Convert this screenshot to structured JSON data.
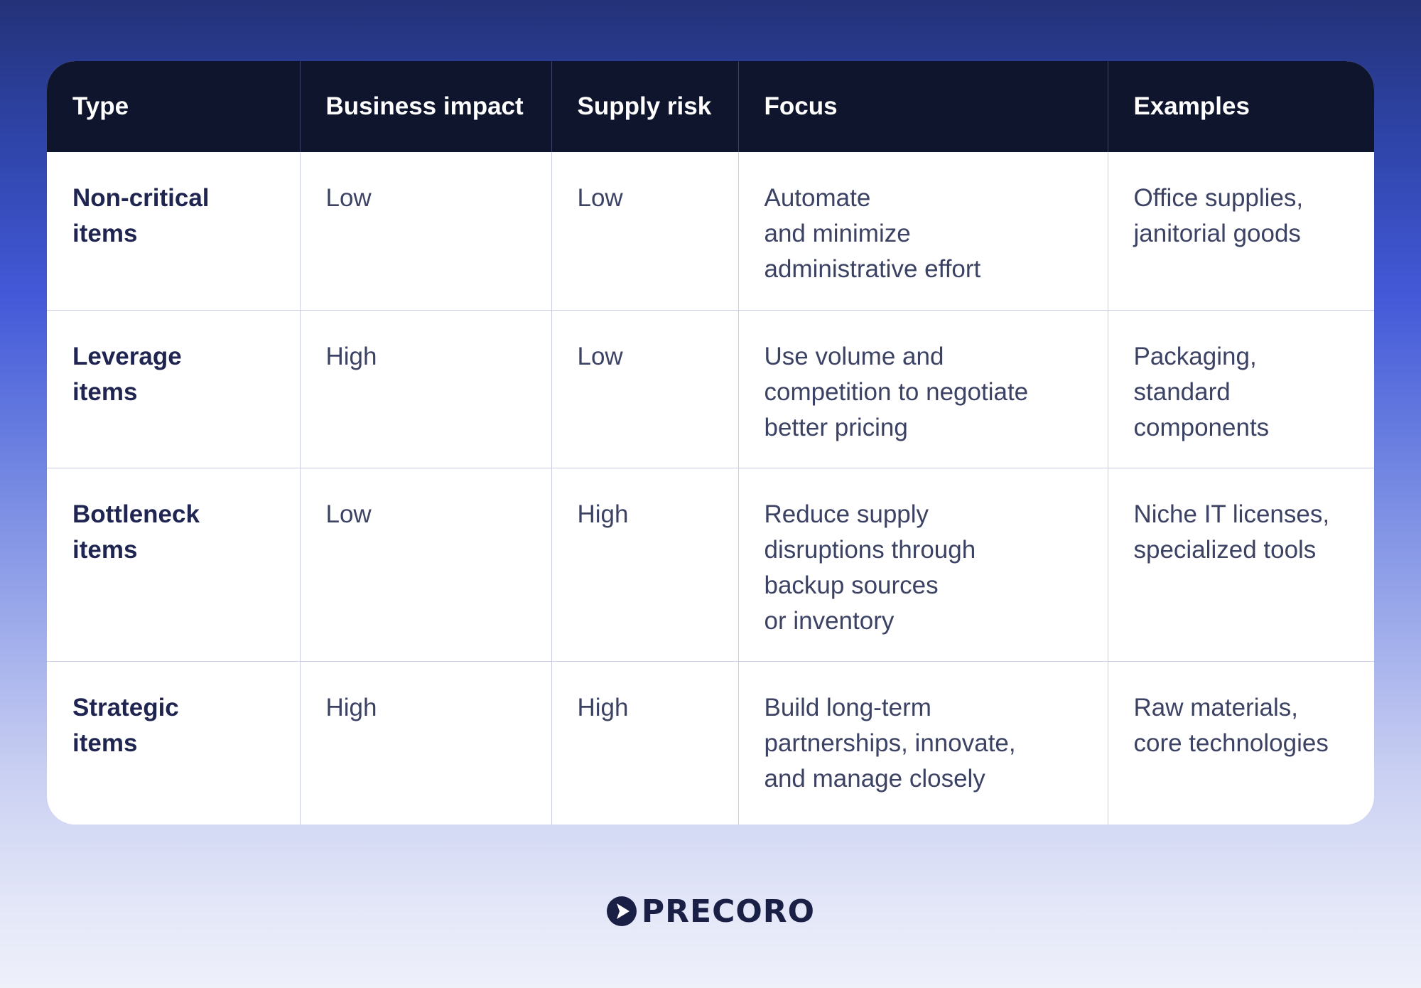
{
  "table": {
    "headers": [
      "Type",
      "Business impact",
      "Supply risk",
      "Focus",
      "Examples"
    ],
    "rows": [
      [
        "Non-critical\nitems",
        "Low",
        "Low",
        "Automate\nand minimize\nadministrative effort",
        "Office supplies,\njanitorial goods"
      ],
      [
        "Leverage\nitems",
        "High",
        "Low",
        "Use volume and\ncompetition to negotiate\nbetter pricing",
        "Packaging,\nstandard\ncomponents"
      ],
      [
        "Bottleneck\nitems",
        "Low",
        "High",
        "Reduce supply\ndisruptions through\nbackup sources\nor inventory",
        "Niche IT licenses,\nspecialized tools"
      ],
      [
        "Strategic\nitems",
        "High",
        "High",
        "Build long-term\npartnerships, innovate,\nand manage closely",
        "Raw materials,\ncore technologies"
      ]
    ]
  },
  "brand": {
    "name": "PRECORO",
    "icon": "play-circle-icon",
    "color": "#1a1f45"
  },
  "colors": {
    "header_bg": "#10152e",
    "body_text": "#3c4263",
    "type_text": "#1f2550"
  }
}
